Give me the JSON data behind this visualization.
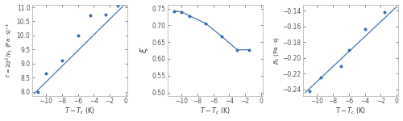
{
  "plot1": {
    "scatter_x": [
      -11.0,
      -10.0,
      -8.0,
      -6.0,
      -4.5,
      -2.5,
      -1.0
    ],
    "scatter_y": [
      8.0,
      8.65,
      9.1,
      10.0,
      10.7,
      10.75,
      11.05
    ],
    "line_x0": -11.5,
    "line_x1": -0.2,
    "line_y0": 7.93,
    "line_y1": 11.08,
    "xlim": [
      -11.8,
      0.2
    ],
    "ylim": [
      7.85,
      11.1
    ],
    "xticks": [
      -10,
      -8,
      -6,
      -4,
      -2,
      0
    ],
    "yticks": [
      8.0,
      8.5,
      9.0,
      9.5,
      10.0,
      10.5,
      11.0
    ],
    "xlabel": "$T-T_c$ (K)",
    "ylabel": "$\\Gamma=2q^2/\\gamma_1\\ (\\mathrm{Pa\\cdot s})^{-1}$",
    "color": "#4575b4"
  },
  "plot2": {
    "scatter_x": [
      -11.0,
      -10.0,
      -9.0,
      -7.0,
      -5.0,
      -3.0,
      -1.5
    ],
    "scatter_y": [
      0.742,
      0.74,
      0.728,
      0.706,
      0.668,
      0.627,
      0.627
    ],
    "xlim": [
      -11.8,
      0.2
    ],
    "ylim": [
      0.49,
      0.762
    ],
    "xticks": [
      -10,
      -8,
      -6,
      -4,
      -2,
      0
    ],
    "yticks": [
      0.5,
      0.55,
      0.6,
      0.65,
      0.7,
      0.75
    ],
    "xlabel": "$T-T_c$ (K)",
    "ylabel": "$\\xi$",
    "color": "#4575b4"
  },
  "plot3": {
    "scatter_x": [
      -11.0,
      -9.5,
      -7.0,
      -6.0,
      -4.0,
      -1.5
    ],
    "scatter_y": [
      -0.242,
      -0.225,
      -0.21,
      -0.19,
      -0.163,
      -0.142
    ],
    "line_x0": -11.5,
    "line_x1": -0.1,
    "line_y0": -0.244,
    "line_y1": -0.136,
    "xlim": [
      -11.8,
      0.2
    ],
    "ylim": [
      -0.248,
      -0.132
    ],
    "xticks": [
      -10,
      -8,
      -6,
      -4,
      -2,
      0
    ],
    "yticks": [
      -0.24,
      -0.22,
      -0.2,
      -0.18,
      -0.16,
      -0.14
    ],
    "xlabel": "$T-T_c$ (K)",
    "ylabel": "$\\beta_2\\ (\\mathrm{Pa\\cdot s})$",
    "color": "#4575b4"
  },
  "fig_width": 5.0,
  "fig_height": 1.5,
  "dpi": 100,
  "spine_color": "#aaaaaa",
  "tick_color": "#555555",
  "label_fontsize": 5.8,
  "tick_fontsize": 5.5,
  "scatter_size": 8,
  "line_width": 0.9,
  "marker_color": "#3a6baa"
}
